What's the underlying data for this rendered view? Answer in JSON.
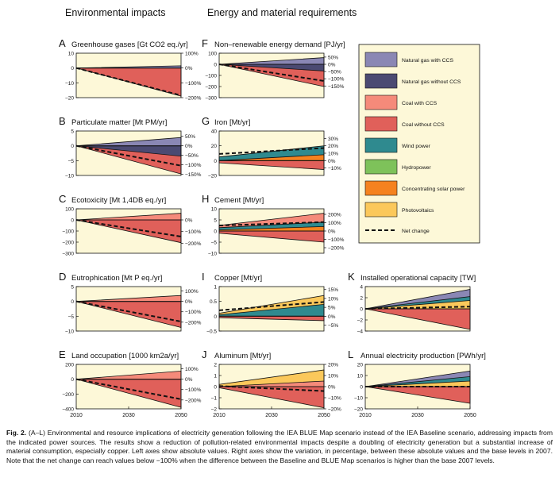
{
  "headers": {
    "left": "Environmental impacts",
    "middle": "Energy and material requirements"
  },
  "legend": {
    "items": [
      {
        "label": "Natural gas with CCS",
        "color": "#8a87b4"
      },
      {
        "label": "Natural gas without CCS",
        "color": "#4b4a72"
      },
      {
        "label": "Coal with CCS",
        "color": "#f58a7a"
      },
      {
        "label": "Coal without CCS",
        "color": "#e0605a"
      },
      {
        "label": "Wind power",
        "color": "#2f8a8f"
      },
      {
        "label": "Hydropower",
        "color": "#7ec25a"
      },
      {
        "label": "Concentrating solar power",
        "color": "#f5821f"
      },
      {
        "label": "Photovoltaics",
        "color": "#fbc85b"
      }
    ],
    "net_label": "Net change"
  },
  "caption": {
    "label": "Fig. 2.",
    "text": "(A–L) Environmental and resource implications of electricity generation following the IEA BLUE Map scenario instead of the IEA Baseline scenario, addressing impacts from the indicated power sources. The results show a reduction of pollution-related environmental impacts despite a doubling of electricity generation but a substantial increase of material consumption, especially copper. Left axes show absolute values. Right axes show the variation, in percentage, between these absolute values and the base levels in 2007. Note that the net change can reach values below −100% when the difference between the Baseline and BLUE Map scenarios is higher than the base 2007 levels."
  },
  "chart_data": [
    {
      "id": "A",
      "type": "area",
      "title": "Greenhouse gases [Gt CO2 eq./yr]",
      "x": [
        2010,
        2050
      ],
      "ylim": [
        -20,
        10
      ],
      "yticks": [
        10,
        0,
        -10,
        -20
      ],
      "right_ticks": [
        "100%",
        "0%",
        "−100%",
        "−200%"
      ],
      "right_values": [
        10,
        0,
        -10,
        -20
      ],
      "series": [
        {
          "source": "Natural gas with CCS",
          "values": [
            0,
            1.5
          ]
        },
        {
          "source": "Coal without CCS",
          "values": [
            0,
            -19
          ]
        }
      ],
      "net": [
        0,
        -18.5
      ]
    },
    {
      "id": "B",
      "type": "area",
      "title": "Particulate matter [Mt PM/yr]",
      "x": [
        2010,
        2050
      ],
      "ylim": [
        -10,
        5
      ],
      "yticks": [
        5,
        0,
        -5,
        -10
      ],
      "right_ticks": [
        "50%",
        "0%",
        "−50%",
        "−100%",
        "−150%"
      ],
      "right_values": [
        3.2,
        0,
        -3.2,
        -6.4,
        -9.6
      ],
      "series": [
        {
          "source": "Natural gas with CCS",
          "values": [
            0,
            2.8
          ]
        },
        {
          "source": "Natural gas without CCS",
          "values": [
            0,
            -3.5
          ]
        },
        {
          "source": "Coal without CCS",
          "values": [
            0,
            -9.5
          ]
        }
      ],
      "net": [
        0,
        -6.7
      ]
    },
    {
      "id": "C",
      "type": "area",
      "title": "Ecotoxicity [Mt 1,4DB eq./yr]",
      "x": [
        2010,
        2050
      ],
      "ylim": [
        -300,
        100
      ],
      "yticks": [
        100,
        0,
        -100,
        -200,
        -300
      ],
      "right_ticks": [
        "0%",
        "−100%",
        "−200%"
      ],
      "right_values": [
        0,
        -105,
        -210
      ],
      "series": [
        {
          "source": "Coal with CCS",
          "values": [
            0,
            60
          ]
        },
        {
          "source": "Coal without CCS",
          "values": [
            0,
            -205
          ]
        }
      ],
      "net": [
        0,
        -150
      ]
    },
    {
      "id": "D",
      "type": "area",
      "title": "Eutrophication [Mt P eq./yr]",
      "x": [
        2010,
        2050
      ],
      "ylim": [
        -10,
        5
      ],
      "yticks": [
        5,
        0,
        -5,
        -10
      ],
      "right_ticks": [
        "100%",
        "0%",
        "−100%",
        "−200%"
      ],
      "right_values": [
        3.5,
        0,
        -3.5,
        -7
      ],
      "series": [
        {
          "source": "Coal with CCS",
          "values": [
            0,
            2
          ]
        },
        {
          "source": "Coal without CCS",
          "values": [
            0,
            -8.8
          ]
        }
      ],
      "net": [
        0,
        -6.8
      ]
    },
    {
      "id": "E",
      "type": "area",
      "title": "Land occupation [1000 km2a/yr]",
      "x": [
        2010,
        2050
      ],
      "ylim": [
        -400,
        200
      ],
      "yticks": [
        200,
        0,
        -200,
        -400
      ],
      "right_ticks": [
        "100%",
        "0%",
        "−100%",
        "−200%"
      ],
      "right_values": [
        140,
        0,
        -140,
        -280
      ],
      "series": [
        {
          "source": "Coal with CCS",
          "values": [
            0,
            110
          ]
        },
        {
          "source": "Coal without CCS",
          "values": [
            0,
            -380
          ]
        }
      ],
      "net": [
        0,
        -270
      ]
    },
    {
      "id": "F",
      "type": "area",
      "title": "Non–renewable energy demand [PJ/yr]",
      "x": [
        2010,
        2050
      ],
      "ylim": [
        -300,
        100
      ],
      "yticks": [
        100,
        0,
        -100,
        -200,
        -300
      ],
      "right_ticks": [
        "50%",
        "0%",
        "−50%",
        "−100%",
        "−150%"
      ],
      "right_values": [
        65,
        0,
        -65,
        -130,
        -195
      ],
      "series": [
        {
          "source": "Natural gas with CCS",
          "values": [
            0,
            60
          ]
        },
        {
          "source": "Natural gas without CCS",
          "values": [
            0,
            -60
          ]
        },
        {
          "source": "Coal without CCS",
          "values": [
            0,
            -200
          ]
        }
      ],
      "net": [
        0,
        -150
      ]
    },
    {
      "id": "G",
      "type": "area",
      "title": "Iron [Mt/yr]",
      "x": [
        2010,
        2050
      ],
      "ylim": [
        -20,
        40
      ],
      "yticks": [
        40,
        20,
        0,
        -20
      ],
      "right_ticks": [
        "30%",
        "20%",
        "10%",
        "0%",
        "−10%"
      ],
      "right_values": [
        30,
        20,
        10,
        0,
        -10
      ],
      "series": [
        {
          "source": "Wind power",
          "values": [
            5,
            20
          ]
        },
        {
          "source": "Concentrating solar power",
          "values": [
            0,
            8
          ]
        },
        {
          "source": "Coal without CCS",
          "values": [
            -3,
            -12
          ]
        }
      ],
      "net": [
        9,
        17
      ]
    },
    {
      "id": "H",
      "type": "area",
      "title": "Cement [Mt/yr]",
      "x": [
        2010,
        2050
      ],
      "ylim": [
        -10,
        10
      ],
      "yticks": [
        10,
        5,
        0,
        -5,
        -10
      ],
      "right_ticks": [
        "200%",
        "100%",
        "0%",
        "−100%",
        "−200%"
      ],
      "right_values": [
        7.5,
        3.75,
        0,
        -3.75,
        -7.5
      ],
      "series": [
        {
          "source": "Coal with CCS",
          "values": [
            2.5,
            8
          ]
        },
        {
          "source": "Wind power",
          "values": [
            1.5,
            4
          ]
        },
        {
          "source": "Concentrating solar power",
          "values": [
            0.5,
            2
          ]
        },
        {
          "source": "Coal without CCS",
          "values": [
            -1,
            -5
          ]
        }
      ],
      "net": [
        2.5,
        4
      ]
    },
    {
      "id": "I",
      "type": "area",
      "title": "Copper [Mt/yr]",
      "x": [
        2010,
        2050
      ],
      "ylim": [
        -0.5,
        1
      ],
      "yticks": [
        1,
        0.5,
        0,
        -0.5
      ],
      "right_ticks": [
        "15%",
        "10%",
        "5%",
        "0%",
        "−5%"
      ],
      "right_values": [
        0.9,
        0.6,
        0.3,
        0,
        -0.3
      ],
      "series": [
        {
          "source": "Photovoltaics",
          "values": [
            0.1,
            0.7
          ]
        },
        {
          "source": "Wind power",
          "values": [
            0.05,
            0.4
          ]
        },
        {
          "source": "Coal without CCS",
          "values": [
            -0.05,
            -0.15
          ]
        }
      ],
      "net": [
        0.2,
        0.48
      ]
    },
    {
      "id": "J",
      "type": "area",
      "title": "Aluminum [Mt/yr]",
      "x": [
        2010,
        2050
      ],
      "ylim": [
        -2,
        2
      ],
      "yticks": [
        2,
        1,
        0,
        -1,
        -2
      ],
      "right_ticks": [
        "20%",
        "10%",
        "0%",
        "−10%",
        "−20%"
      ],
      "right_values": [
        2,
        1,
        0,
        -1,
        -2
      ],
      "series": [
        {
          "source": "Photovoltaics",
          "values": [
            0.2,
            1.5
          ]
        },
        {
          "source": "Coal with CCS",
          "values": [
            0,
            0.5
          ]
        },
        {
          "source": "Coal without CCS",
          "values": [
            -0.1,
            -1.9
          ]
        }
      ],
      "net": [
        0.05,
        -0.4
      ]
    },
    {
      "id": "K",
      "type": "area",
      "title": "Installed operational capacity [TW]",
      "x": [
        2010,
        2050
      ],
      "ylim": [
        -4,
        4
      ],
      "yticks": [
        4,
        2,
        0,
        -2,
        -4
      ],
      "series": [
        {
          "source": "Natural gas with CCS",
          "values": [
            0,
            3.5
          ]
        },
        {
          "source": "Wind power",
          "values": [
            0,
            2.2
          ]
        },
        {
          "source": "Photovoltaics",
          "values": [
            0,
            1.5
          ]
        },
        {
          "source": "Coal without CCS",
          "values": [
            0,
            -3.7
          ]
        }
      ],
      "net": [
        0,
        0.4
      ]
    },
    {
      "id": "L",
      "type": "area",
      "title": "Annual electricity production [PWh/yr]",
      "x": [
        2010,
        2050
      ],
      "ylim": [
        -20,
        20
      ],
      "yticks": [
        20,
        10,
        0,
        -10,
        -20
      ],
      "series": [
        {
          "source": "Natural gas with CCS",
          "values": [
            0,
            14
          ]
        },
        {
          "source": "Wind power",
          "values": [
            0,
            9
          ]
        },
        {
          "source": "Photovoltaics",
          "values": [
            0,
            5
          ]
        },
        {
          "source": "Coal without CCS",
          "values": [
            0,
            -15
          ]
        }
      ],
      "net": [
        0,
        0
      ]
    }
  ]
}
